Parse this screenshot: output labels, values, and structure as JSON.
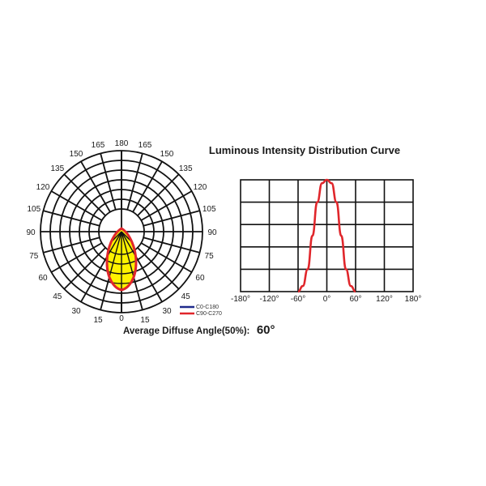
{
  "title": "Luminous Intensity Distribution Curve",
  "chart_data": [
    {
      "type": "polar",
      "angle_labels_left": [
        "165",
        "150",
        "135",
        "120",
        "105",
        "90",
        "75",
        "60",
        "45",
        "30",
        "15"
      ],
      "angle_labels_right": [
        "165",
        "150",
        "135",
        "120",
        "105",
        "90",
        "75",
        "60",
        "45",
        "30",
        "15"
      ],
      "top_label": "180",
      "bottom_label": "0",
      "legend": [
        {
          "name": "C0-C180",
          "color": "#1f2a8c"
        },
        {
          "name": "C90-C270",
          "color": "#e0262b"
        }
      ],
      "fill_color": "#fff200",
      "beam_half_angle_deg": 30
    },
    {
      "type": "line",
      "x_tick_labels": [
        "-180°",
        "-120°",
        "-60°",
        "0°",
        "60°",
        "120°",
        "180°"
      ],
      "xlim": [
        -180,
        180
      ],
      "ylim": [
        0,
        1
      ],
      "grid": true,
      "series": [
        {
          "color": "#e0262b",
          "x": [
            -60,
            -50,
            -40,
            -30,
            -20,
            -10,
            0,
            10,
            20,
            30,
            40,
            50,
            60
          ],
          "y": [
            0.0,
            0.05,
            0.2,
            0.5,
            0.8,
            0.97,
            1.0,
            0.97,
            0.8,
            0.5,
            0.2,
            0.05,
            0.0
          ]
        }
      ]
    }
  ],
  "caption": {
    "label": "Average Diffuse Angle(50%):",
    "value": "60°"
  }
}
